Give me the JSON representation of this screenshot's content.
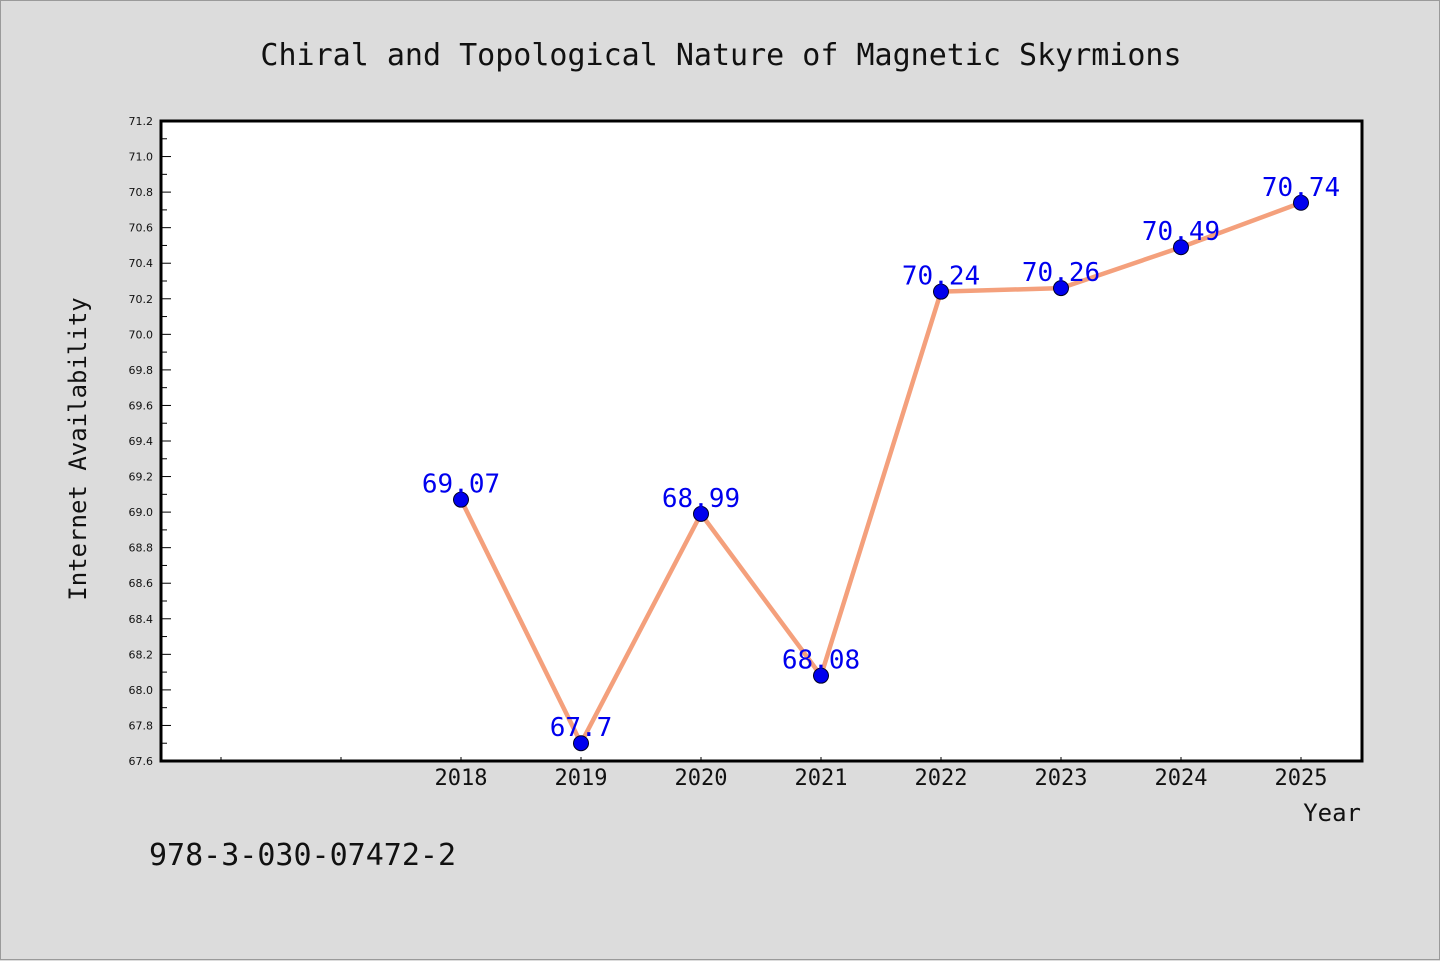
{
  "chart_data": {
    "type": "line",
    "title": "Chiral and Topological Nature of Magnetic Skyrmions",
    "xlabel": "Year",
    "ylabel": "Internet Availability",
    "x_ticks": [
      "",
      "",
      "2018",
      "2019",
      "2020",
      "2021",
      "2022",
      "2023",
      "2024",
      "2025"
    ],
    "x": [
      "2018",
      "2019",
      "2020",
      "2021",
      "2022",
      "2023",
      "2024",
      "2025"
    ],
    "series": [
      {
        "values": [
          69.07,
          67.7,
          68.99,
          68.08,
          70.24,
          70.26,
          70.49,
          70.74
        ],
        "labels": [
          "69.07",
          "67.7",
          "68.99",
          "68.08",
          "70.24",
          "70.26",
          "70.49",
          "70.74"
        ]
      }
    ],
    "ylim": [
      67.6,
      71.2
    ],
    "y_major_step": 0.2,
    "y_tick_labels": [
      "67.6",
      "67.8",
      "68.0",
      "68.2",
      "68.4",
      "68.6",
      "68.8",
      "69.0",
      "69.2",
      "69.4",
      "69.6",
      "69.8",
      "70.0",
      "70.2",
      "70.4",
      "70.6",
      "70.8",
      "71.0",
      "71.2"
    ],
    "grid": false,
    "legend": "none",
    "colors": {
      "line": "#f4a07c",
      "marker": "#0000ee",
      "label": "#0000ee",
      "plot_background": "#ffffff",
      "page_background": "#dcdcdc"
    }
  },
  "footer": {
    "isbn": "978-3-030-07472-2"
  }
}
